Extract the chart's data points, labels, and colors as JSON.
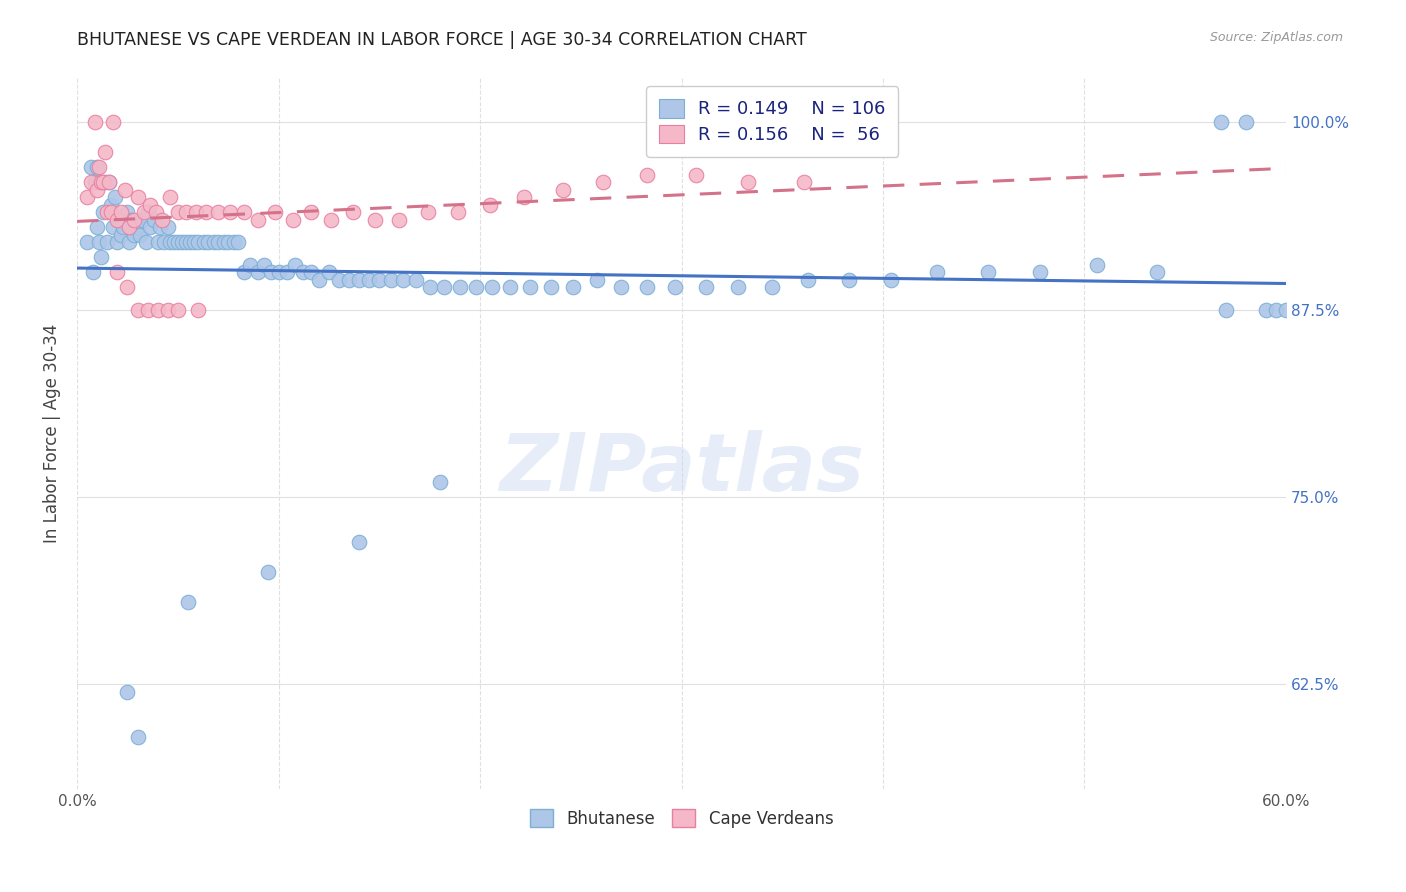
{
  "title": "BHUTANESE VS CAPE VERDEAN IN LABOR FORCE | AGE 30-34 CORRELATION CHART",
  "source": "Source: ZipAtlas.com",
  "ylabel": "In Labor Force | Age 30-34",
  "watermark": "ZIPatlas",
  "blue_R": 0.149,
  "blue_N": 106,
  "pink_R": 0.156,
  "pink_N": 56,
  "xlim": [
    0.0,
    0.6
  ],
  "ylim": [
    0.555,
    1.03
  ],
  "yticks": [
    0.625,
    0.75,
    0.875,
    1.0
  ],
  "ytick_labels": [
    "62.5%",
    "75.0%",
    "87.5%",
    "100.0%"
  ],
  "xtick_labels": [
    "0.0%",
    "",
    "",
    "",
    "",
    "",
    "60.0%"
  ],
  "blue_color": "#aec6e8",
  "blue_edge_color": "#7bafd4",
  "pink_color": "#f4b8c8",
  "pink_edge_color": "#e87fa0",
  "blue_line_color": "#4472c4",
  "pink_line_color": "#d4728a",
  "title_color": "#222222",
  "source_color": "#999999",
  "ylabel_color": "#444444",
  "right_ytick_color": "#4472c4",
  "grid_color": "#e0e0e0",
  "blue_x": [
    0.005,
    0.007,
    0.008,
    0.009,
    0.01,
    0.01,
    0.011,
    0.012,
    0.013,
    0.014,
    0.015,
    0.016,
    0.017,
    0.018,
    0.019,
    0.02,
    0.021,
    0.022,
    0.023,
    0.025,
    0.026,
    0.027,
    0.028,
    0.03,
    0.031,
    0.032,
    0.034,
    0.035,
    0.036,
    0.038,
    0.04,
    0.041,
    0.043,
    0.045,
    0.046,
    0.048,
    0.05,
    0.052,
    0.054,
    0.056,
    0.058,
    0.06,
    0.063,
    0.065,
    0.068,
    0.07,
    0.073,
    0.075,
    0.078,
    0.08,
    0.083,
    0.086,
    0.09,
    0.093,
    0.096,
    0.1,
    0.104,
    0.108,
    0.112,
    0.116,
    0.12,
    0.125,
    0.13,
    0.135,
    0.14,
    0.145,
    0.15,
    0.156,
    0.162,
    0.168,
    0.175,
    0.182,
    0.19,
    0.198,
    0.206,
    0.215,
    0.225,
    0.235,
    0.246,
    0.258,
    0.27,
    0.283,
    0.297,
    0.312,
    0.328,
    0.345,
    0.363,
    0.383,
    0.404,
    0.427,
    0.452,
    0.478,
    0.506,
    0.536,
    0.568,
    0.57,
    0.58,
    0.59,
    0.595,
    0.6,
    0.14,
    0.18,
    0.095,
    0.055,
    0.03,
    0.025
  ],
  "blue_y": [
    0.92,
    0.97,
    0.9,
    0.96,
    0.93,
    0.97,
    0.92,
    0.91,
    0.94,
    0.96,
    0.92,
    0.96,
    0.945,
    0.93,
    0.95,
    0.92,
    0.935,
    0.925,
    0.93,
    0.94,
    0.92,
    0.935,
    0.925,
    0.93,
    0.925,
    0.935,
    0.92,
    0.94,
    0.93,
    0.935,
    0.92,
    0.93,
    0.92,
    0.93,
    0.92,
    0.92,
    0.92,
    0.92,
    0.92,
    0.92,
    0.92,
    0.92,
    0.92,
    0.92,
    0.92,
    0.92,
    0.92,
    0.92,
    0.92,
    0.92,
    0.9,
    0.905,
    0.9,
    0.905,
    0.9,
    0.9,
    0.9,
    0.905,
    0.9,
    0.9,
    0.895,
    0.9,
    0.895,
    0.895,
    0.895,
    0.895,
    0.895,
    0.895,
    0.895,
    0.895,
    0.89,
    0.89,
    0.89,
    0.89,
    0.89,
    0.89,
    0.89,
    0.89,
    0.89,
    0.895,
    0.89,
    0.89,
    0.89,
    0.89,
    0.89,
    0.89,
    0.895,
    0.895,
    0.895,
    0.9,
    0.9,
    0.9,
    0.905,
    0.9,
    1.0,
    0.875,
    1.0,
    0.875,
    0.875,
    0.875,
    0.72,
    0.76,
    0.7,
    0.68,
    0.59,
    0.62
  ],
  "pink_x": [
    0.005,
    0.007,
    0.009,
    0.01,
    0.011,
    0.012,
    0.013,
    0.014,
    0.015,
    0.016,
    0.017,
    0.018,
    0.02,
    0.022,
    0.024,
    0.026,
    0.028,
    0.03,
    0.033,
    0.036,
    0.039,
    0.042,
    0.046,
    0.05,
    0.054,
    0.059,
    0.064,
    0.07,
    0.076,
    0.083,
    0.09,
    0.098,
    0.107,
    0.116,
    0.126,
    0.137,
    0.148,
    0.16,
    0.174,
    0.189,
    0.205,
    0.222,
    0.241,
    0.261,
    0.283,
    0.307,
    0.333,
    0.361,
    0.02,
    0.025,
    0.03,
    0.035,
    0.04,
    0.045,
    0.05,
    0.06
  ],
  "pink_y": [
    0.95,
    0.96,
    1.0,
    0.955,
    0.97,
    0.96,
    0.96,
    0.98,
    0.94,
    0.96,
    0.94,
    1.0,
    0.935,
    0.94,
    0.955,
    0.93,
    0.935,
    0.95,
    0.94,
    0.945,
    0.94,
    0.935,
    0.95,
    0.94,
    0.94,
    0.94,
    0.94,
    0.94,
    0.94,
    0.94,
    0.935,
    0.94,
    0.935,
    0.94,
    0.935,
    0.94,
    0.935,
    0.935,
    0.94,
    0.94,
    0.945,
    0.95,
    0.955,
    0.96,
    0.965,
    0.965,
    0.96,
    0.96,
    0.9,
    0.89,
    0.875,
    0.875,
    0.875,
    0.875,
    0.875,
    0.875
  ]
}
